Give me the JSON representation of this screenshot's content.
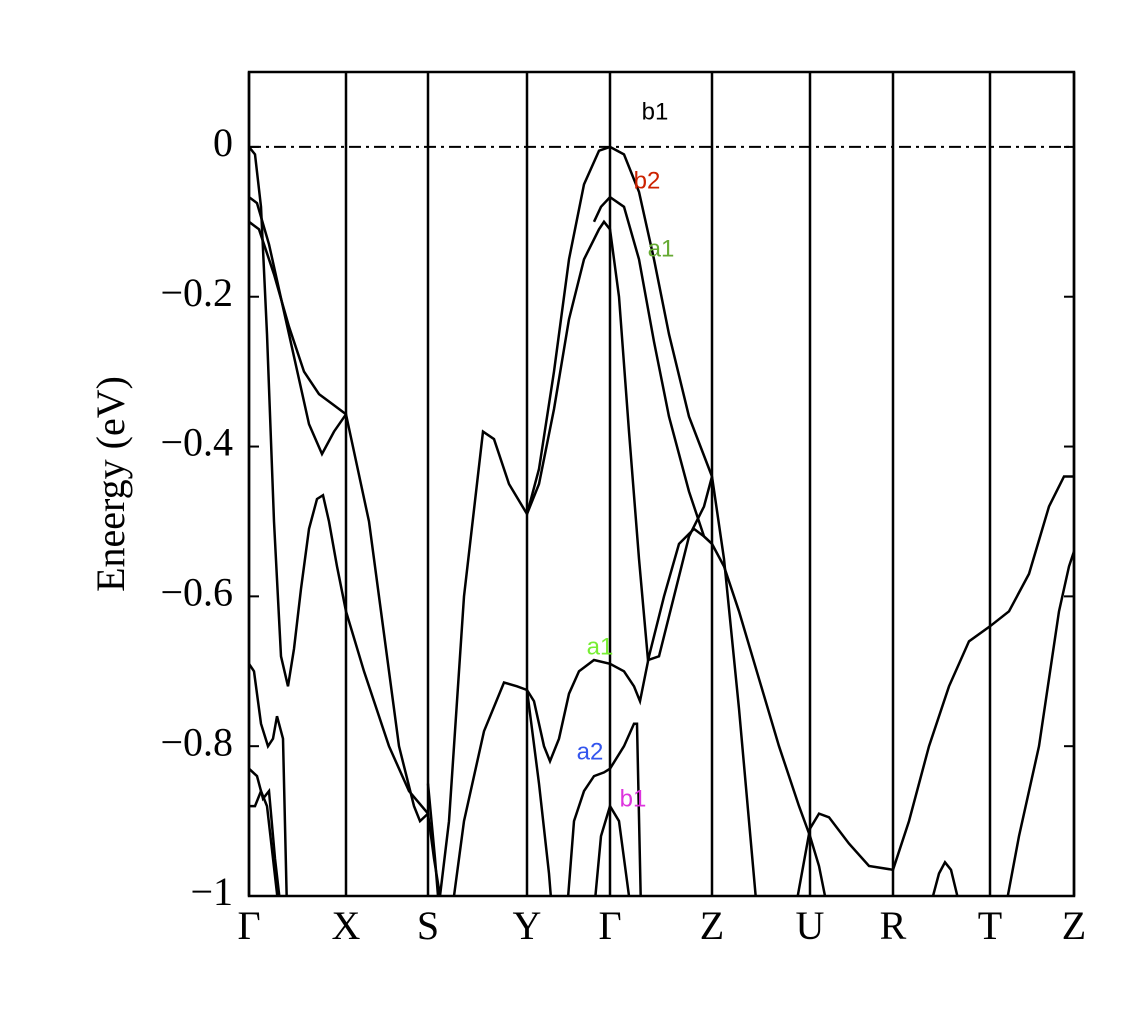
{
  "chart_data": {
    "type": "line",
    "ylabel": "Eneergy (eV)",
    "xlim": [
      0,
      825
    ],
    "ylim": [
      -1,
      0.1
    ],
    "xticks": [
      {
        "value": 0,
        "label": "Γ"
      },
      {
        "value": 97,
        "label": "X"
      },
      {
        "value": 179,
        "label": "S"
      },
      {
        "value": 278,
        "label": "Y"
      },
      {
        "value": 361,
        "label": "Γ"
      },
      {
        "value": 463,
        "label": "Z"
      },
      {
        "value": 561,
        "label": "U"
      },
      {
        "value": 644,
        "label": "R"
      },
      {
        "value": 741,
        "label": "T"
      },
      {
        "value": 825,
        "label": "Z"
      }
    ],
    "yticks": [
      0,
      {
        "value": -0.2,
        "label": "−0.2"
      },
      {
        "value": -0.4,
        "label": "−0.4"
      },
      {
        "value": -0.6,
        "label": "−0.6"
      },
      {
        "value": -0.8,
        "label": "−0.8"
      },
      {
        "value": -1,
        "label": "−1"
      }
    ],
    "reference_line": 0,
    "series": [
      {
        "color": "#000000",
        "x": [
          0,
          6,
          12,
          18,
          25,
          32,
          39,
          45,
          52,
          60,
          68,
          74,
          80,
          88,
          97,
          115,
          140,
          160,
          179
        ],
        "values": [
          0,
          -0.01,
          -0.08,
          -0.25,
          -0.5,
          -0.68,
          -0.72,
          -0.67,
          -0.59,
          -0.51,
          -0.47,
          -0.465,
          -0.5,
          -0.56,
          -0.62,
          -0.7,
          -0.8,
          -0.86,
          -0.89
        ]
      },
      {
        "color": "#000000",
        "x": [
          0,
          8,
          20,
          35,
          50,
          60,
          73,
          85,
          97,
          120,
          150,
          165,
          171,
          179
        ],
        "values": [
          -0.067,
          -0.075,
          -0.13,
          -0.22,
          -0.31,
          -0.37,
          -0.41,
          -0.38,
          -0.357,
          -0.5,
          -0.8,
          -0.88,
          -0.9,
          -0.89
        ]
      },
      {
        "color": "#000000",
        "x": [
          0,
          10,
          25,
          40,
          55,
          70,
          85,
          97
        ],
        "values": [
          -0.1,
          -0.11,
          -0.17,
          -0.24,
          -0.3,
          -0.33,
          -0.345,
          -0.357
        ]
      },
      {
        "color": "#000000",
        "x": [
          179,
          185,
          191,
          200,
          215,
          234,
          245,
          260,
          278
        ],
        "values": [
          -0.89,
          -0.95,
          -1.0,
          -0.9,
          -0.6,
          -0.38,
          -0.39,
          -0.45,
          -0.49
        ]
      },
      {
        "color": "#000000",
        "x": [
          179,
          186,
          192
        ],
        "values": [
          -0.85,
          -0.95,
          -1.05
        ]
      },
      {
        "color": "#000000",
        "x": [
          200,
          215,
          235,
          255,
          268,
          278
        ],
        "values": [
          -1.05,
          -0.9,
          -0.78,
          -0.715,
          -0.72,
          -0.725
        ]
      },
      {
        "color": "#000000",
        "x": [
          278,
          290,
          305,
          320,
          335,
          350,
          361,
          375,
          390,
          405,
          420,
          440,
          463
        ],
        "values": [
          -0.49,
          -0.43,
          -0.3,
          -0.15,
          -0.05,
          -0.005,
          0,
          -0.01,
          -0.06,
          -0.15,
          -0.25,
          -0.36,
          -0.44
        ]
      },
      {
        "color": "#000000",
        "x": [
          278,
          290,
          305,
          320,
          335,
          350,
          355,
          361,
          370,
          380,
          390,
          399,
          410,
          425,
          440,
          455,
          463
        ],
        "values": [
          -0.49,
          -0.45,
          -0.35,
          -0.23,
          -0.15,
          -0.11,
          -0.1,
          -0.11,
          -0.2,
          -0.38,
          -0.55,
          -0.685,
          -0.68,
          -0.6,
          -0.52,
          -0.48,
          -0.44
        ]
      },
      {
        "color": "#000000",
        "x": [
          345,
          352,
          361,
          375,
          390,
          405,
          420,
          440,
          455,
          463
        ],
        "values": [
          -0.1,
          -0.08,
          -0.067,
          -0.08,
          -0.15,
          -0.26,
          -0.36,
          -0.46,
          -0.52,
          -0.53
        ]
      },
      {
        "color": "#000000",
        "x": [
          278,
          285,
          295,
          301,
          310,
          320,
          330,
          345,
          361,
          375,
          385,
          391,
          400,
          415,
          430,
          445,
          455,
          463
        ],
        "values": [
          -0.725,
          -0.74,
          -0.8,
          -0.82,
          -0.79,
          -0.73,
          -0.7,
          -0.685,
          -0.69,
          -0.7,
          -0.72,
          -0.74,
          -0.68,
          -0.6,
          -0.53,
          -0.51,
          -0.52,
          -0.53
        ]
      },
      {
        "color": "#000000",
        "x": [
          278,
          290,
          300,
          303
        ],
        "values": [
          -0.725,
          -0.85,
          -0.97,
          -1.02
        ]
      },
      {
        "color": "#000000",
        "x": [
          318,
          325,
          335,
          345,
          355,
          361,
          375,
          385,
          388,
          392
        ],
        "values": [
          -1.02,
          -0.9,
          -0.86,
          -0.84,
          -0.835,
          -0.83,
          -0.8,
          -0.77,
          -0.77,
          -1.02
        ]
      },
      {
        "color": "#000000",
        "x": [
          345,
          352,
          361,
          370,
          378,
          382
        ],
        "values": [
          -1.02,
          -0.92,
          -0.88,
          -0.9,
          -0.98,
          -1.02
        ]
      },
      {
        "color": "#000000",
        "x": [
          463,
          475,
          490,
          500,
          508
        ],
        "values": [
          -0.44,
          -0.55,
          -0.75,
          -0.9,
          -1.02
        ]
      },
      {
        "color": "#000000",
        "x": [
          463,
          475,
          490,
          510,
          530,
          550,
          561,
          570,
          579
        ],
        "values": [
          -0.53,
          -0.56,
          -0.62,
          -0.71,
          -0.8,
          -0.88,
          -0.92,
          -0.96,
          -1.02
        ]
      },
      {
        "color": "#000000",
        "x": [
          546,
          561,
          570,
          580,
          600,
          620,
          644,
          660,
          680,
          700,
          720,
          741,
          760,
          780,
          800,
          815,
          825
        ],
        "values": [
          -1.02,
          -0.91,
          -0.89,
          -0.895,
          -0.93,
          -0.96,
          -0.965,
          -0.9,
          -0.8,
          -0.72,
          -0.66,
          -0.64,
          -0.62,
          -0.57,
          -0.48,
          -0.44,
          -0.44
        ]
      },
      {
        "color": "#000000",
        "x": [
          680,
          690,
          696,
          702,
          712
        ],
        "values": [
          -1.02,
          -0.97,
          -0.955,
          -0.965,
          -1.02
        ]
      },
      {
        "color": "#000000",
        "x": [
          756,
          770,
          790,
          810,
          820,
          825
        ],
        "values": [
          -1.02,
          -0.92,
          -0.8,
          -0.62,
          -0.56,
          -0.54
        ]
      },
      {
        "color": "#000000",
        "x": [
          0,
          5,
          12,
          19,
          24,
          28,
          34,
          38
        ],
        "values": [
          -0.69,
          -0.7,
          -0.77,
          -0.8,
          -0.79,
          -0.76,
          -0.79,
          -1.02
        ]
      },
      {
        "color": "#000000",
        "x": [
          0,
          8,
          14,
          20,
          26,
          32
        ],
        "values": [
          -0.83,
          -0.84,
          -0.87,
          -0.86,
          -0.95,
          -1.02
        ]
      },
      {
        "color": "#000000",
        "x": [
          0,
          6,
          12,
          18,
          24,
          30
        ],
        "values": [
          -0.88,
          -0.88,
          -0.86,
          -0.88,
          -0.95,
          -1.02
        ]
      }
    ],
    "annotations": [
      {
        "text": "b1",
        "x": 406,
        "y": 0.045,
        "color": "#000000"
      },
      {
        "text": "b2",
        "x": 398,
        "y": -0.047,
        "color": "#cc2200"
      },
      {
        "text": "a1",
        "x": 412,
        "y": -0.138,
        "color": "#66aa33"
      },
      {
        "text": "a1",
        "x": 351,
        "y": -0.669,
        "color": "#77ee33"
      },
      {
        "text": "a2",
        "x": 341,
        "y": -0.809,
        "color": "#3355ee"
      },
      {
        "text": "b1",
        "x": 384,
        "y": -0.872,
        "color": "#dd33dd"
      }
    ]
  }
}
